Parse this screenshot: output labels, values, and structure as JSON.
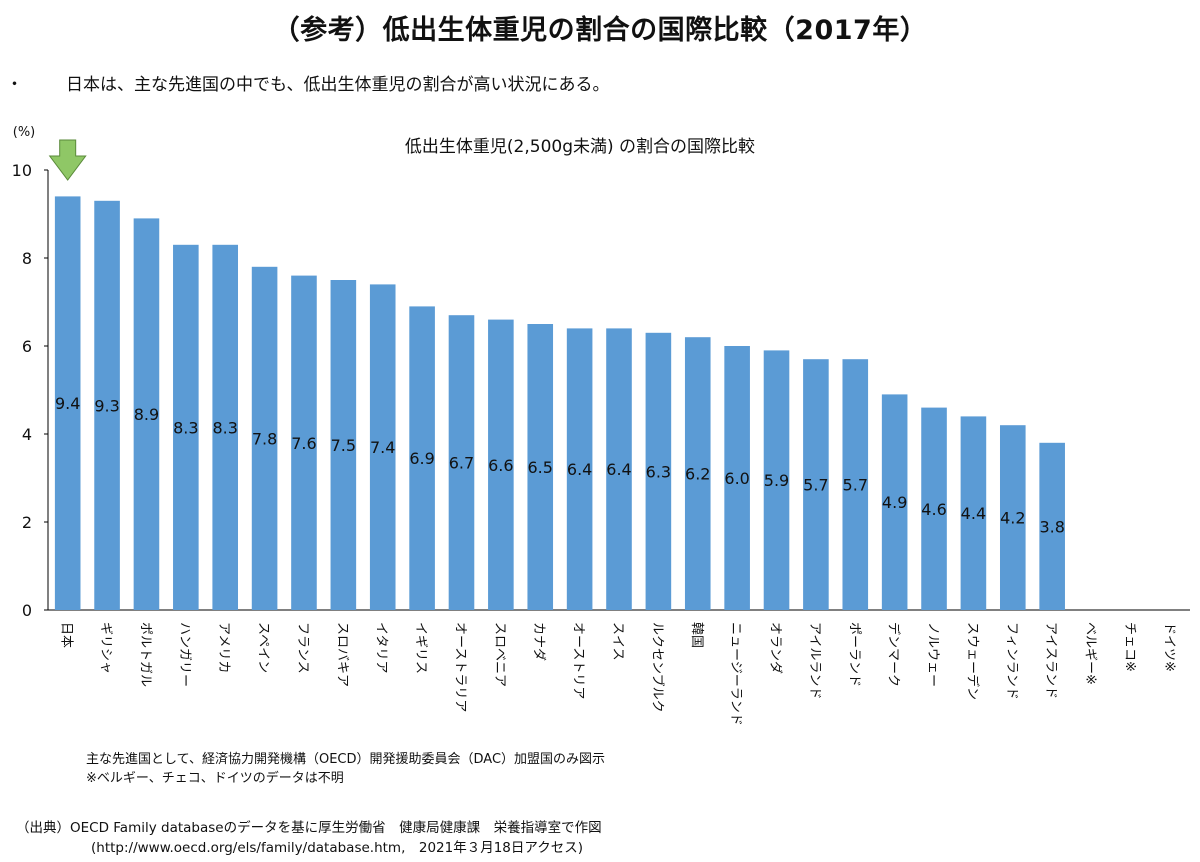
{
  "page": {
    "title": "（参考）低出生体重児の割合の国際比較（2017年）",
    "bullet": "・",
    "subtitle": "日本は、主な先進国の中でも、低出生体重児の割合が高い状況にある。",
    "notes": [
      "主な先進国として、経済協力開発機構（OECD）開発援助委員会（DAC）加盟国のみ図示",
      "※ベルギー、チェコ、ドイツのデータは不明"
    ],
    "source_line1": "（出典）OECD Family databaseのデータを基に厚生労働省　健康局健康課　栄養指導室で作図",
    "source_line2": "(http://www.oecd.org/els/family/database.htm,　2021年３月18日アクセス)"
  },
  "colors": {
    "bar": "#5b9bd5",
    "arrow_fill": "#8fc766",
    "arrow_stroke": "#5a8a3a",
    "axis": "#000000"
  },
  "chart_data": {
    "type": "bar",
    "title": "低出生体重児(2,500g未満) の割合の国際比較",
    "ylabel": "(%)",
    "xlabel": "",
    "ylim": [
      0,
      10
    ],
    "yticks": [
      0,
      2,
      4,
      6,
      8,
      10
    ],
    "grid": false,
    "legend": "none",
    "highlight": "日本",
    "categories": [
      "日本",
      "ギリシャ",
      "ポルトガル",
      "ハンガリー",
      "アメリカ",
      "スペイン",
      "フランス",
      "スロバキア",
      "イタリア",
      "イギリス",
      "オーストラリア",
      "スロベニア",
      "カナダ",
      "オーストリア",
      "スイス",
      "ルクセンブルク",
      "韓国",
      "ニュージーランド",
      "オランダ",
      "アイルランド",
      "ポーランド",
      "デンマーク",
      "ノルウェー",
      "スウェーデン",
      "フィンランド",
      "アイスランド",
      "ベルギー※",
      "チェコ※",
      "ドイツ※"
    ],
    "values": [
      9.4,
      9.3,
      8.9,
      8.3,
      8.3,
      7.8,
      7.6,
      7.5,
      7.4,
      6.9,
      6.7,
      6.6,
      6.5,
      6.4,
      6.4,
      6.3,
      6.2,
      6.0,
      5.9,
      5.7,
      5.7,
      4.9,
      4.6,
      4.4,
      4.2,
      3.8,
      null,
      null,
      null
    ],
    "value_labels": [
      "9.4",
      "9.3",
      "8.9",
      "8.3",
      "8.3",
      "7.8",
      "7.6",
      "7.5",
      "7.4",
      "6.9",
      "6.7",
      "6.6",
      "6.5",
      "6.4",
      "6.4",
      "6.3",
      "6.2",
      "6.0",
      "5.9",
      "5.7",
      "5.7",
      "4.9",
      "4.6",
      "4.4",
      "4.2",
      "3.8",
      "",
      "",
      ""
    ]
  }
}
